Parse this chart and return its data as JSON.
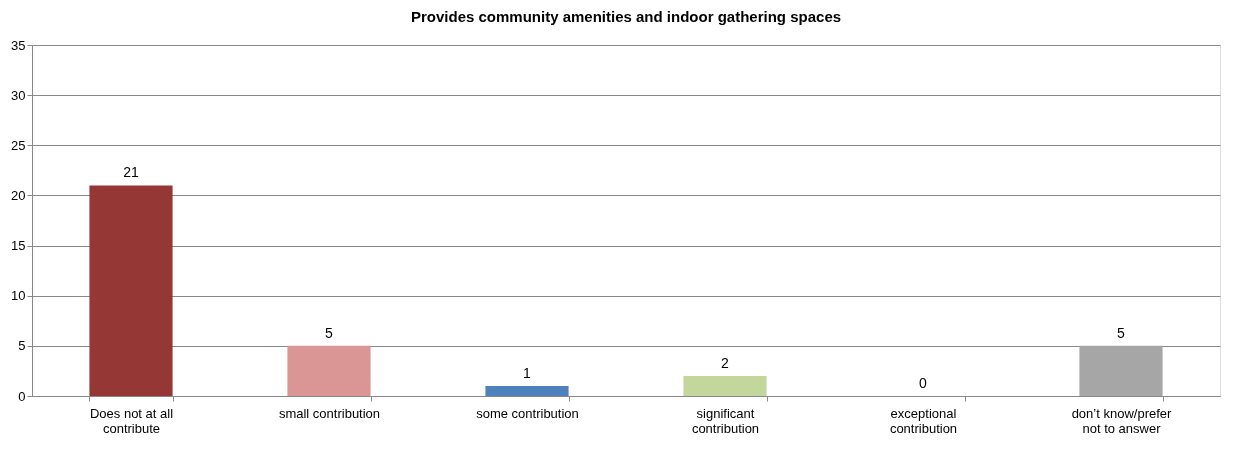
{
  "chart_data": {
    "type": "bar",
    "title": "Provides community amenities and indoor gathering spaces",
    "categories": [
      "Does not at all contribute",
      "small contribution",
      "some contribution",
      "significant contribution",
      "exceptional contribution",
      "don’t know/prefer not to answer"
    ],
    "values": [
      21,
      5,
      1,
      2,
      0,
      5
    ],
    "colors": [
      "#953735",
      "#d99694",
      "#4f81bd",
      "#c3d69b",
      "#8064a2",
      "#a6a6a6"
    ],
    "ylim": [
      0,
      35
    ],
    "yticks": [
      0,
      5,
      10,
      15,
      20,
      25,
      30,
      35
    ],
    "grid": "y",
    "data_labels": true
  }
}
